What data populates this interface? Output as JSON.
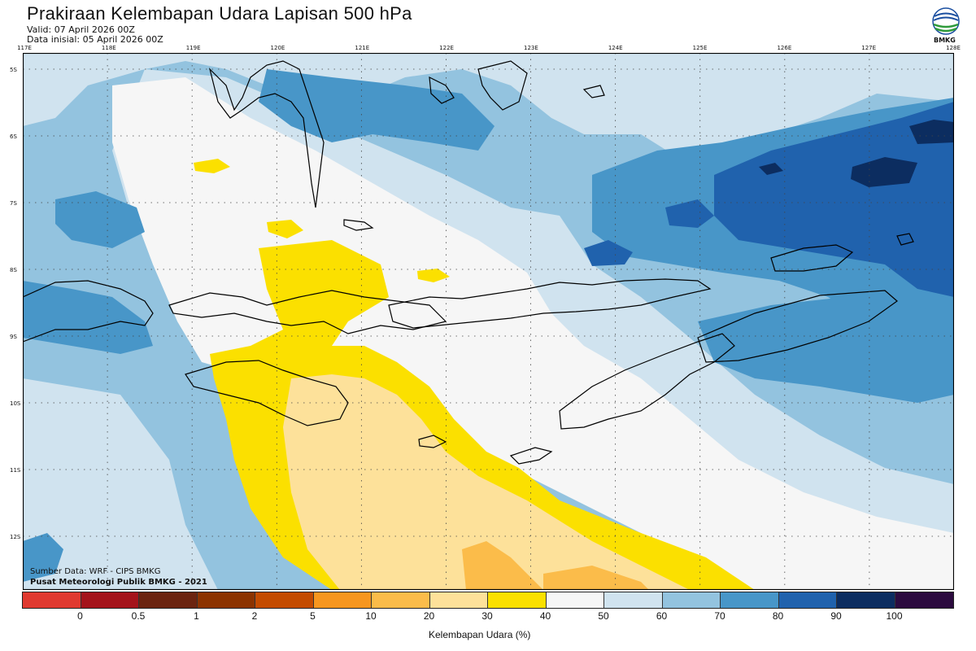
{
  "header": {
    "title": "Prakiraan Kelembapan Udara Lapisan 500 hPa",
    "valid": "Valid: 07 April 2026 00Z",
    "init": "Data inisial: 05 April 2026 00Z",
    "logo_text": "BMKG"
  },
  "axes": {
    "lon_labels": [
      "117E",
      "118E",
      "119E",
      "120E",
      "121E",
      "122E",
      "123E",
      "124E",
      "125E",
      "126E",
      "127E",
      "128E"
    ],
    "lat_labels": [
      "5S",
      "6S",
      "7S",
      "8S",
      "9S",
      "10S",
      "11S",
      "12S"
    ]
  },
  "credits": {
    "source": "Sumber Data: WRF - CIPS BMKG",
    "org": "Pusat Meteorologi Publik BMKG - 2021"
  },
  "colorbar": {
    "label": "Kelembapan Udara (%)",
    "ticks": [
      "0",
      "0.5",
      "1",
      "2",
      "5",
      "10",
      "20",
      "30",
      "40",
      "50",
      "60",
      "70",
      "80",
      "90",
      "100"
    ],
    "colors": [
      "#e03a30",
      "#a4141b",
      "#6b2410",
      "#8c3300",
      "#c44b00",
      "#f7961e",
      "#fbbc4a",
      "#fde19a",
      "#fbe000",
      "#f6f6f6",
      "#d0e3ef",
      "#93c3df",
      "#4896c8",
      "#2062ad",
      "#0c2d60",
      "#2c0b3f"
    ]
  },
  "map": {
    "colors": {
      "dry_yellow": "#fbe000",
      "dry_light": "#fde19a",
      "dry_orange": "#fbbc4a",
      "white": "#f6f6f6",
      "pale_blue": "#d0e3ef",
      "light_blue": "#93c3df",
      "mid_blue": "#4896c8",
      "blue": "#2062ad",
      "dark_blue": "#0c2d60"
    }
  }
}
